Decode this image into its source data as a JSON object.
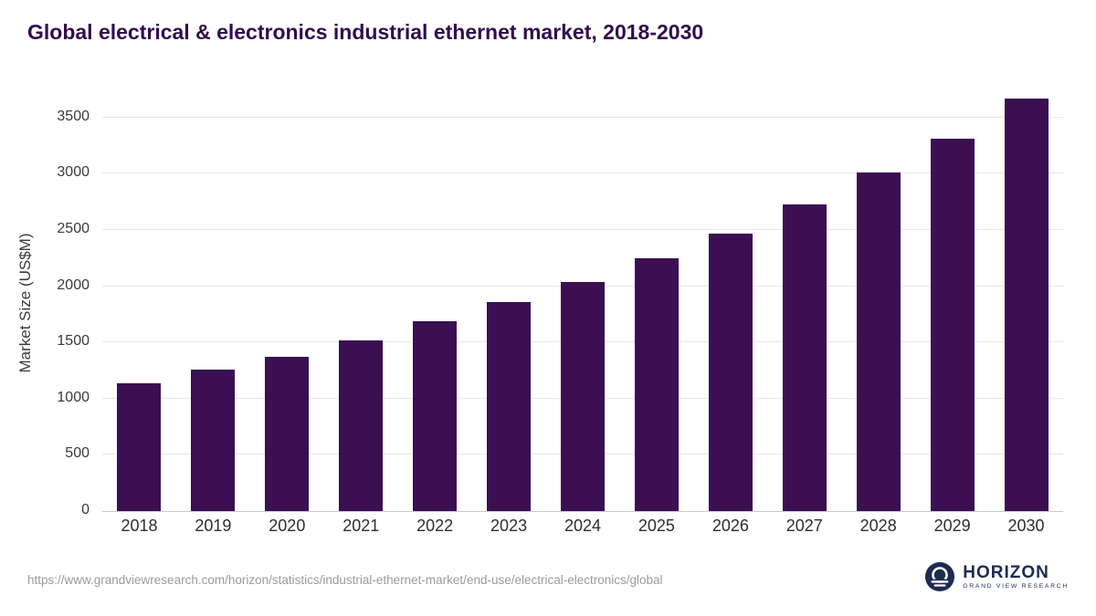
{
  "page": {
    "footer": {
      "source_url": "https://www.grandviewresearch.com/horizon/statistics/industrial-ethernet-market/end-use/electrical-electronics/global",
      "logo_name": "HORIZON",
      "logo_subtitle": "GRAND VIEW RESEARCH"
    }
  },
  "colors": {
    "bar": "#3b0f52",
    "title": "#320c4d",
    "grid": "#e7e7e7",
    "footer_text": "#9b9b9b",
    "logo_navy": "#1c2b50"
  },
  "chart_data": {
    "type": "bar",
    "title": "Global electrical & electronics industrial ethernet market, 2018-2030",
    "categories": [
      "2018",
      "2019",
      "2020",
      "2021",
      "2022",
      "2023",
      "2024",
      "2025",
      "2026",
      "2027",
      "2028",
      "2029",
      "2030"
    ],
    "values": [
      1140,
      1255,
      1375,
      1520,
      1685,
      1860,
      2040,
      2245,
      2470,
      2725,
      3010,
      3315,
      3670
    ],
    "xlabel": "",
    "ylabel": "Market Size (US$M)",
    "ylim": [
      0,
      3750
    ],
    "yticks": [
      0,
      500,
      1000,
      1500,
      2000,
      2500,
      3000,
      3500
    ],
    "grid": true,
    "legend": false
  }
}
